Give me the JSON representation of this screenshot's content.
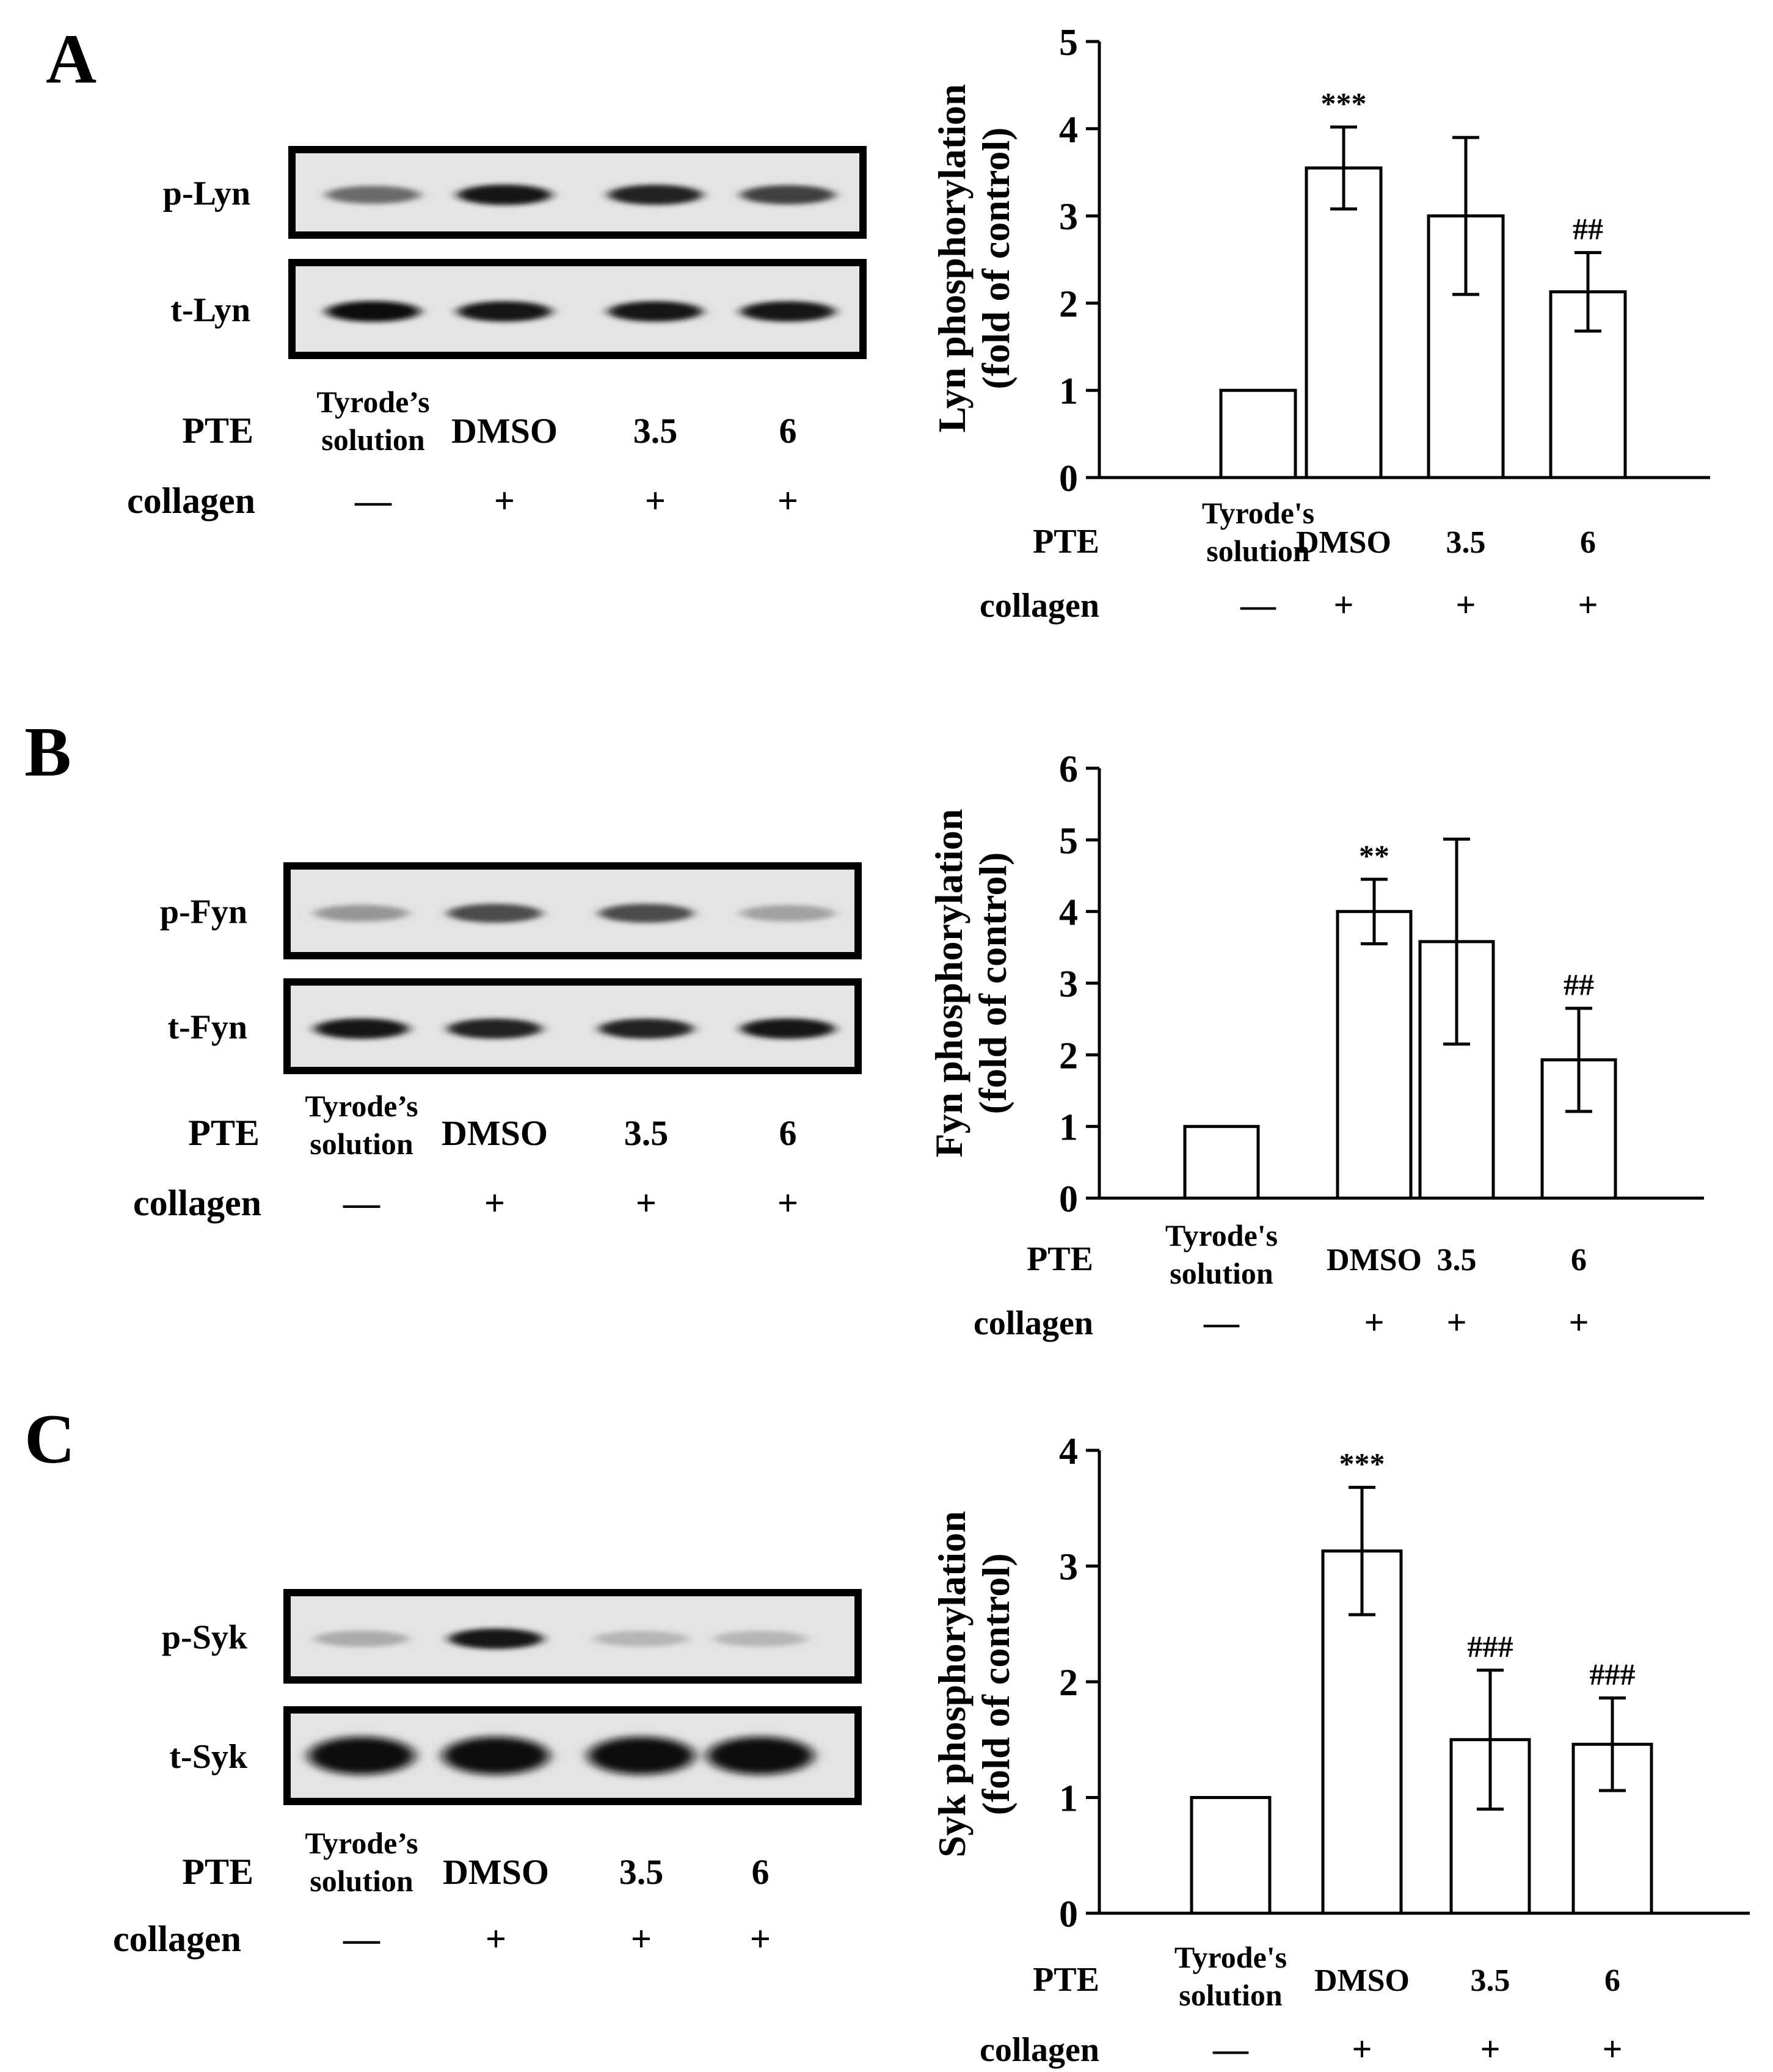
{
  "panels": [
    {
      "letter": "A",
      "blot": {
        "rows": [
          {
            "label": "p-Lyn",
            "intensities": [
              0.55,
              0.95,
              0.9,
              0.75
            ],
            "band": "thin"
          },
          {
            "label": "t-Lyn",
            "intensities": [
              1.0,
              0.95,
              0.95,
              0.95
            ],
            "band": "thin"
          }
        ],
        "pte_label": "PTE",
        "collagen_label": "collagen",
        "pte": [
          "Tyrode’s|solution",
          "DMSO",
          "3.5",
          "6"
        ],
        "collagen": [
          "—",
          "+",
          "+",
          "+"
        ]
      },
      "chart_data": {
        "type": "bar",
        "ylabel": "Lyn phosphorylation|(fold of control)",
        "ylim": [
          0,
          5
        ],
        "yticks": [
          0,
          1,
          2,
          3,
          4,
          5
        ],
        "categories": [
          "Tyrode's|solution",
          "DMSO",
          "3.5",
          "6"
        ],
        "values": [
          1.0,
          3.55,
          3.0,
          2.13
        ],
        "errors": [
          0,
          0.47,
          0.9,
          0.45
        ],
        "annotations": [
          "",
          "***",
          "",
          "##"
        ],
        "pte_label": "PTE",
        "collagen_label": "collagen",
        "collagen": [
          "—",
          "+",
          "+",
          "+"
        ]
      }
    },
    {
      "letter": "B",
      "blot": {
        "rows": [
          {
            "label": "p-Fyn",
            "intensities": [
              0.35,
              0.7,
              0.7,
              0.3
            ],
            "band": "thin"
          },
          {
            "label": "t-Fyn",
            "intensities": [
              0.95,
              0.9,
              0.9,
              0.95
            ],
            "band": "thin"
          }
        ],
        "pte_label": "PTE",
        "collagen_label": "collagen",
        "pte": [
          "Tyrode’s|solution",
          "DMSO",
          "3.5",
          "6"
        ],
        "collagen": [
          "—",
          "+",
          "+",
          "+"
        ]
      },
      "chart_data": {
        "type": "bar",
        "ylabel": "Fyn phosphorylation|(fold of control)",
        "ylim": [
          0,
          6
        ],
        "yticks": [
          0,
          1,
          2,
          3,
          4,
          5,
          6
        ],
        "categories": [
          "Tyrode's|solution",
          "DMSO",
          "3.5",
          "6"
        ],
        "values": [
          1.0,
          4.0,
          3.58,
          1.93
        ],
        "errors": [
          0,
          0.45,
          1.43,
          0.72
        ],
        "annotations": [
          "",
          "**",
          "",
          "##"
        ],
        "pte_label": "PTE",
        "collagen_label": "collagen",
        "collagen": [
          "—",
          "+",
          "+",
          "+"
        ]
      }
    },
    {
      "letter": "C",
      "blot": {
        "rows": [
          {
            "label": "p-Syk",
            "intensities": [
              0.25,
              0.95,
              0.2,
              0.2
            ],
            "band": "thin"
          },
          {
            "label": "t-Syk",
            "intensities": [
              1.0,
              1.0,
              1.0,
              1.0
            ],
            "band": "thick"
          }
        ],
        "pte_label": "PTE",
        "collagen_label": "collagen",
        "pte": [
          "Tyrode’s|solution",
          "DMSO",
          "3.5",
          "6"
        ],
        "collagen": [
          "—",
          "+",
          "+",
          "+"
        ]
      },
      "chart_data": {
        "type": "bar",
        "ylabel": "Syk phosphorylation|(fold of control)",
        "ylim": [
          0,
          4
        ],
        "yticks": [
          0,
          1,
          2,
          3,
          4
        ],
        "categories": [
          "Tyrode's|solution",
          "DMSO",
          "3.5",
          "6"
        ],
        "values": [
          1.0,
          3.13,
          1.5,
          1.46
        ],
        "errors": [
          0,
          0.55,
          0.6,
          0.4
        ],
        "annotations": [
          "",
          "***",
          "###",
          "###"
        ],
        "pte_label": "PTE",
        "collagen_label": "collagen",
        "collagen": [
          "—",
          "+",
          "+",
          "+"
        ]
      }
    }
  ]
}
